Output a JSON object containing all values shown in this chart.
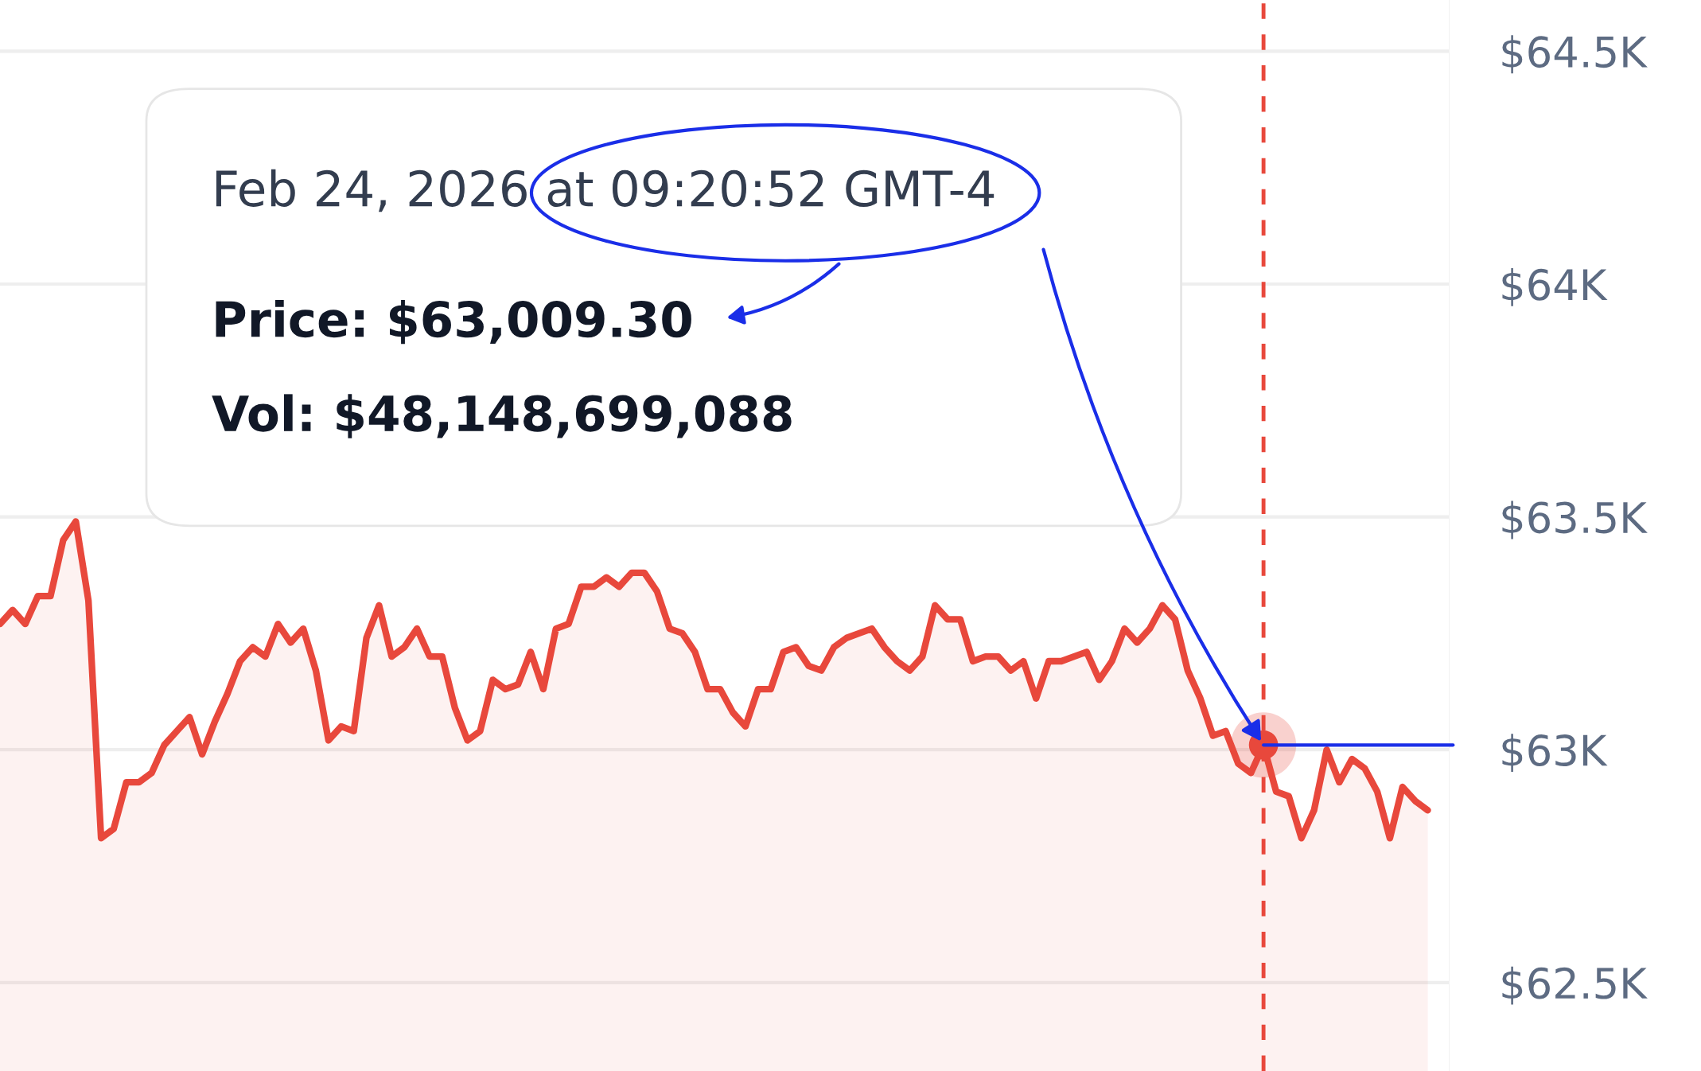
{
  "chart_data": {
    "type": "area",
    "relative": false,
    "categories": [
      null,
      null,
      null,
      null,
      null,
      null,
      null,
      null,
      null,
      null,
      null,
      null,
      null,
      null,
      null,
      null,
      null,
      null,
      null,
      null,
      null,
      null,
      null,
      null,
      null,
      null,
      null,
      null,
      null,
      null,
      null,
      null,
      null,
      null,
      null,
      null,
      null,
      null,
      null,
      null,
      null,
      null,
      null,
      null,
      null,
      null,
      null,
      null,
      null,
      null,
      null,
      null,
      null,
      null,
      null,
      null,
      null,
      null,
      null,
      null,
      null,
      null,
      null,
      null,
      null,
      null,
      null,
      null,
      null,
      null,
      null,
      null,
      null,
      null,
      null,
      null,
      null,
      null,
      null,
      null,
      null,
      null,
      null,
      null,
      null,
      null,
      null,
      null,
      null,
      null,
      null,
      null,
      null,
      null,
      null,
      null,
      null,
      null,
      null,
      null,
      null,
      null,
      null,
      null,
      null,
      null,
      null,
      null,
      null,
      null,
      null,
      null,
      null,
      null
    ],
    "series": [
      {
        "color": "#e8483c",
        "values": [
          63270,
          63300,
          63270,
          63330,
          63330,
          63450,
          63490,
          63320,
          62810,
          62830,
          62930,
          62930,
          62950,
          63010,
          63040,
          63070,
          62990,
          63060,
          63120,
          63190,
          63220,
          63200,
          63270,
          63230,
          63260,
          63170,
          63020,
          63050,
          63040,
          63240,
          63310,
          63200,
          63220,
          63260,
          63200,
          63200,
          63090,
          63020,
          63040,
          63150,
          63130,
          63140,
          63210,
          63130,
          63260,
          63270,
          63350,
          63350,
          63370,
          63350,
          63380,
          63380,
          63340,
          63260,
          63250,
          63210,
          63130,
          63130,
          63080,
          63050,
          63130,
          63130,
          63210,
          63220,
          63180,
          63170,
          63220,
          63240,
          63250,
          63260,
          63220,
          63190,
          63170,
          63200,
          63310,
          63280,
          63280,
          63190,
          63200,
          63200,
          63170,
          63190,
          63110,
          63190,
          63190,
          63200,
          63210,
          63150,
          63190,
          63260,
          63230,
          63260,
          63310,
          63280,
          63170,
          63110,
          63030,
          63040,
          62970,
          62950,
          63010,
          62910,
          62900,
          62810,
          62870,
          63000,
          62930,
          62980,
          62960,
          62910,
          62810,
          62920,
          62890,
          62870
        ]
      }
    ],
    "ylim": [
      62310,
      64610
    ],
    "yticks": [
      {
        "value": 62500,
        "label": "$62.5K"
      },
      {
        "value": 63000,
        "label": "$63K"
      },
      {
        "value": 63500,
        "label": "$63.5K"
      },
      {
        "value": 64000,
        "label": "$64K"
      },
      {
        "value": 64500,
        "label": "$64.5K"
      }
    ],
    "grid": "y",
    "tick_labels": "y",
    "annotations": [
      "Feb 24, 2026 at 09:20:52 GMT-4",
      "Price: $63,009.30",
      "Vol: $48,148,699,088"
    ]
  }
}
